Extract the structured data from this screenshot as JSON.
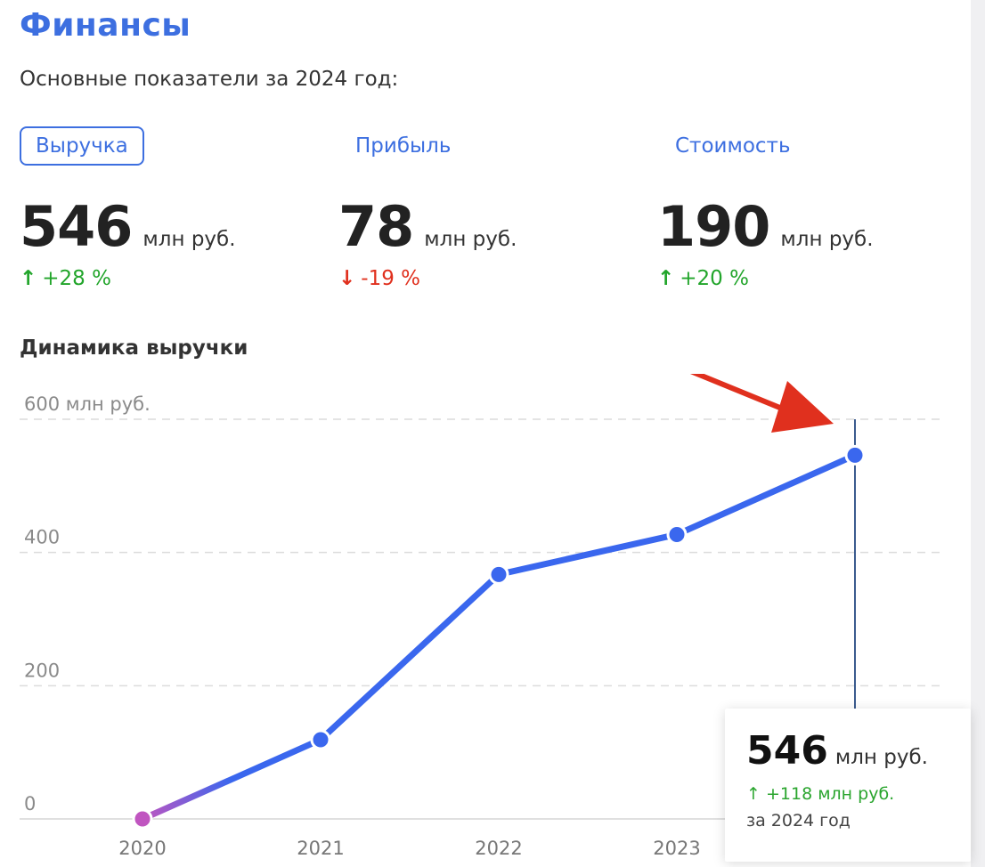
{
  "header": {
    "title": "Финансы",
    "subtitle": "Основные показатели за 2024 год:"
  },
  "tabs": [
    {
      "label": "Выручка",
      "active": true
    },
    {
      "label": "Прибыль",
      "active": false
    },
    {
      "label": "Стоимость",
      "active": false
    }
  ],
  "kpis": [
    {
      "value": "546",
      "unit": "млн руб.",
      "change": "+28 %",
      "direction": "up"
    },
    {
      "value": "78",
      "unit": "млн руб.",
      "change": "-19 %",
      "direction": "down"
    },
    {
      "value": "190",
      "unit": "млн руб.",
      "change": "+20 %",
      "direction": "up"
    }
  ],
  "colors": {
    "accent": "#3d6fe0",
    "positive": "#22a52b",
    "negative": "#e0301e",
    "line": "#3a67ee",
    "first_point": "#c055c0",
    "annotation_arrow": "#e0301e"
  },
  "icons": {
    "up": "arrow-up-icon",
    "down": "arrow-down-icon",
    "annotation": "red-arrow-annotation"
  },
  "chart_data": {
    "type": "line",
    "title": "Динамика выручки",
    "x": [
      "2020",
      "2021",
      "2022",
      "2023",
      "2024"
    ],
    "series": [
      {
        "values": [
          0,
          119,
          367,
          427,
          546
        ]
      }
    ],
    "ylim": [
      0,
      600
    ],
    "yticks": [
      0,
      200,
      400,
      600
    ],
    "ytick_labels": [
      "0",
      "200",
      "400",
      "600 млн руб."
    ],
    "xtick_labels": [
      "2020",
      "2021",
      "2022",
      "2023"
    ],
    "grid": true,
    "highlighted_index": 4
  },
  "tooltip": {
    "value": "546",
    "unit": "млн руб.",
    "change": "+118 млн руб.",
    "period": "за 2024 год"
  }
}
